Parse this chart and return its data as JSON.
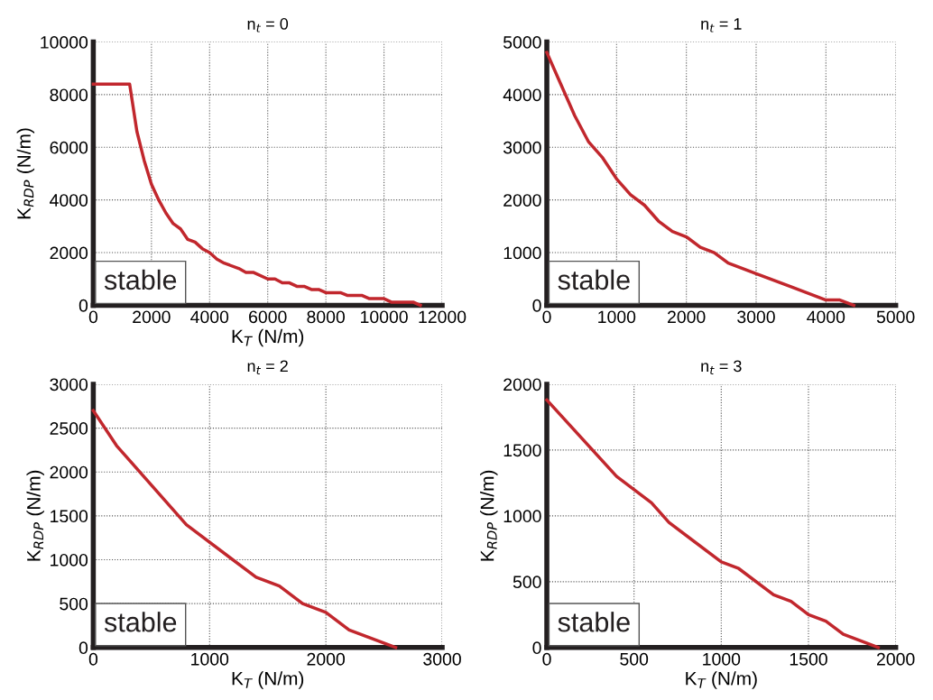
{
  "chart_data": [
    {
      "type": "line",
      "title": "n$_{t}$ = 0",
      "xlabel": "K$_{T}$ (N/m)",
      "ylabel": "K$_{RDP}$ (N/m)",
      "annotations": [
        "stable"
      ],
      "grid": true,
      "xlim": [
        0,
        12000
      ],
      "xticks": [
        0,
        2000,
        4000,
        6000,
        8000,
        10000,
        12000
      ],
      "ylim": [
        0,
        10000
      ],
      "yticks": [
        0,
        2000,
        4000,
        6000,
        8000,
        10000
      ],
      "series": [
        {
          "color": "#c1272d",
          "x": [
            0,
            1250,
            1500,
            1750,
            2000,
            2250,
            2500,
            2750,
            3000,
            3250,
            3500,
            3750,
            4000,
            4250,
            4500,
            5000,
            5250,
            5500,
            6000,
            6250,
            6500,
            6750,
            7000,
            7250,
            7500,
            7750,
            8000,
            8500,
            8750,
            9250,
            9500,
            10000,
            10250,
            11000,
            11250
          ],
          "values": [
            8400,
            8400,
            6600,
            5500,
            4600,
            4000,
            3500,
            3100,
            2900,
            2500,
            2400,
            2150,
            2000,
            1750,
            1600,
            1400,
            1250,
            1250,
            1000,
            1000,
            850,
            850,
            720,
            720,
            600,
            600,
            480,
            480,
            370,
            370,
            250,
            250,
            120,
            120,
            0
          ]
        }
      ]
    },
    {
      "type": "line",
      "title": "n$_{t}$ = 1",
      "annotations": [
        "stable"
      ],
      "grid": true,
      "xlim": [
        0,
        5000
      ],
      "xticks": [
        0,
        1000,
        2000,
        3000,
        4000,
        5000
      ],
      "ylim": [
        0,
        5000
      ],
      "yticks": [
        0,
        1000,
        2000,
        3000,
        4000,
        5000
      ],
      "series": [
        {
          "color": "#c1272d",
          "x": [
            0,
            200,
            400,
            600,
            800,
            1000,
            1200,
            1400,
            1600,
            1800,
            2000,
            2200,
            2400,
            2600,
            3000,
            3500,
            4000,
            4200,
            4400
          ],
          "values": [
            4800,
            4200,
            3600,
            3100,
            2800,
            2400,
            2100,
            1900,
            1600,
            1400,
            1300,
            1100,
            1000,
            800,
            600,
            350,
            100,
            100,
            0
          ]
        }
      ]
    },
    {
      "type": "line",
      "title": "n$_{t}$ = 2",
      "xlabel": "K$_{T}$ (N/m)",
      "ylabel": "K$_{RDP}$ (N/m)",
      "annotations": [
        "stable"
      ],
      "grid": true,
      "xlim": [
        0,
        3000
      ],
      "xticks": [
        0,
        1000,
        2000,
        3000
      ],
      "ylim": [
        0,
        3000
      ],
      "yticks": [
        0,
        500,
        1000,
        1500,
        2000,
        2500,
        3000
      ],
      "series": [
        {
          "color": "#c1272d",
          "x": [
            0,
            200,
            800,
            1400,
            1600,
            1800,
            2000,
            2200,
            2600
          ],
          "values": [
            2700,
            2300,
            1400,
            800,
            700,
            500,
            400,
            200,
            0
          ]
        }
      ]
    },
    {
      "type": "line",
      "title": "n$_{t}$ = 3",
      "xlabel": "K$_{T}$ (N/m)",
      "ylabel": "K$_{RDP}$ (N/m)",
      "annotations": [
        "stable"
      ],
      "grid": true,
      "xlim": [
        0,
        2000
      ],
      "xticks": [
        0,
        500,
        1000,
        1500,
        2000
      ],
      "ylim": [
        0,
        2000
      ],
      "yticks": [
        0,
        500,
        1000,
        1500,
        2000
      ],
      "series": [
        {
          "color": "#c1272d",
          "x": [
            0,
            400,
            600,
            700,
            1000,
            1100,
            1300,
            1400,
            1500,
            1600,
            1700,
            1900
          ],
          "values": [
            1880,
            1300,
            1100,
            950,
            650,
            600,
            400,
            350,
            250,
            200,
            100,
            0
          ]
        }
      ]
    }
  ]
}
